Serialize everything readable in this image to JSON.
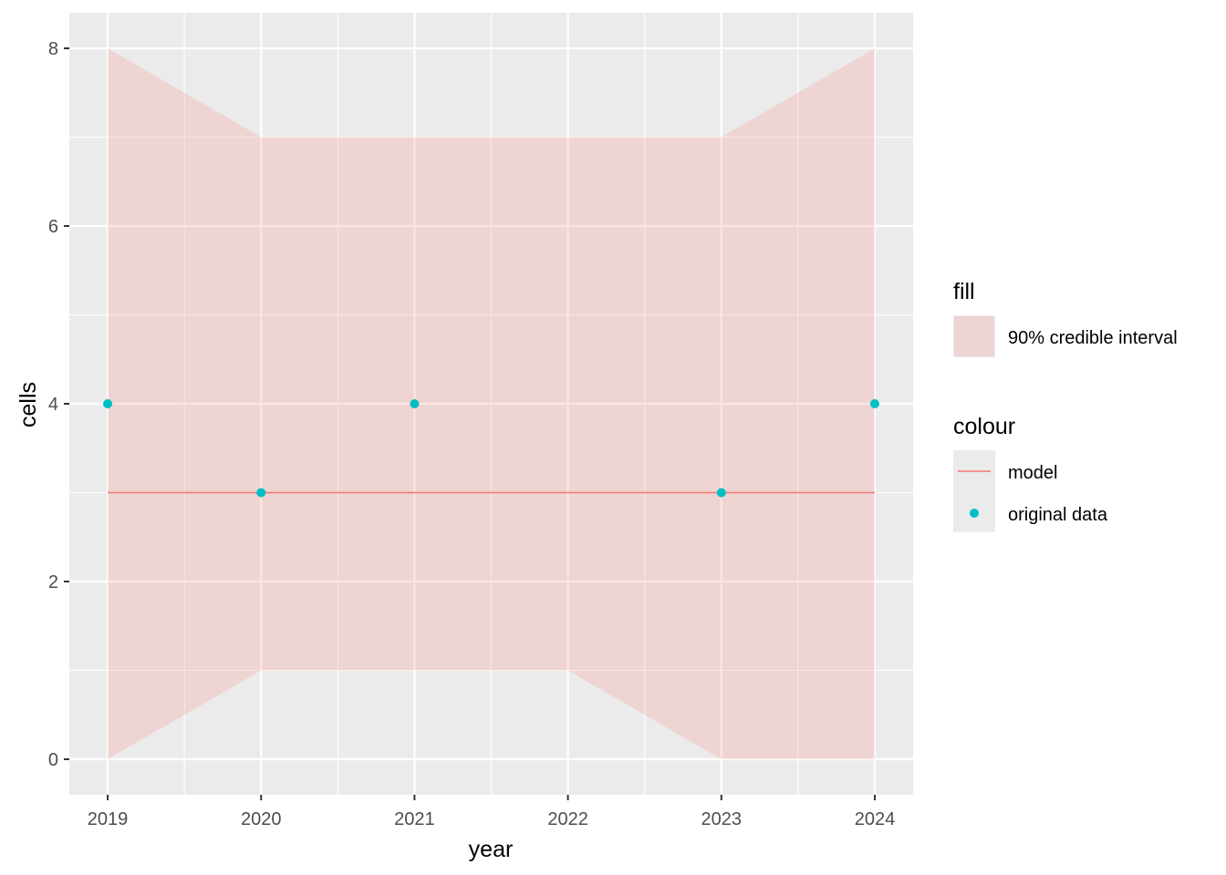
{
  "chart_data": {
    "type": "line",
    "xlabel": "year",
    "ylabel": "cells",
    "x": [
      2019,
      2020,
      2021,
      2022,
      2023,
      2024
    ],
    "x_ticks": [
      "2019",
      "2020",
      "2021",
      "2022",
      "2023",
      "2024"
    ],
    "y_ticks": [
      "0",
      "2",
      "4",
      "6",
      "8"
    ],
    "xlim": [
      2018.75,
      2024.25
    ],
    "ylim": [
      -0.4,
      8.4
    ],
    "grid": true,
    "ribbon": {
      "name": "90% credible interval",
      "lower": [
        0,
        1,
        1,
        1,
        0,
        0
      ],
      "upper": [
        8,
        7,
        7,
        7,
        7,
        8
      ],
      "color": "#F8766D"
    },
    "series": [
      {
        "name": "model",
        "kind": "line",
        "values": [
          3,
          3,
          3,
          3,
          3,
          3
        ],
        "color": "#F8766D"
      },
      {
        "name": "original data",
        "kind": "point",
        "x": [
          2019,
          2020,
          2021,
          2023,
          2024
        ],
        "values": [
          4,
          3,
          4,
          3,
          4
        ],
        "color": "#00BFC4"
      }
    ],
    "legend": {
      "placement": "right",
      "fill_title": "fill",
      "fill_label": "90% credible interval",
      "colour_title": "colour",
      "line_label": "model",
      "point_label": "original data"
    },
    "colors": {
      "panel_background": "#EBEBEB",
      "grid_major": "#FFFFFF",
      "ribbon_fill": "#F8766D",
      "model_line": "#F8766D",
      "points": "#00BFC4"
    }
  }
}
